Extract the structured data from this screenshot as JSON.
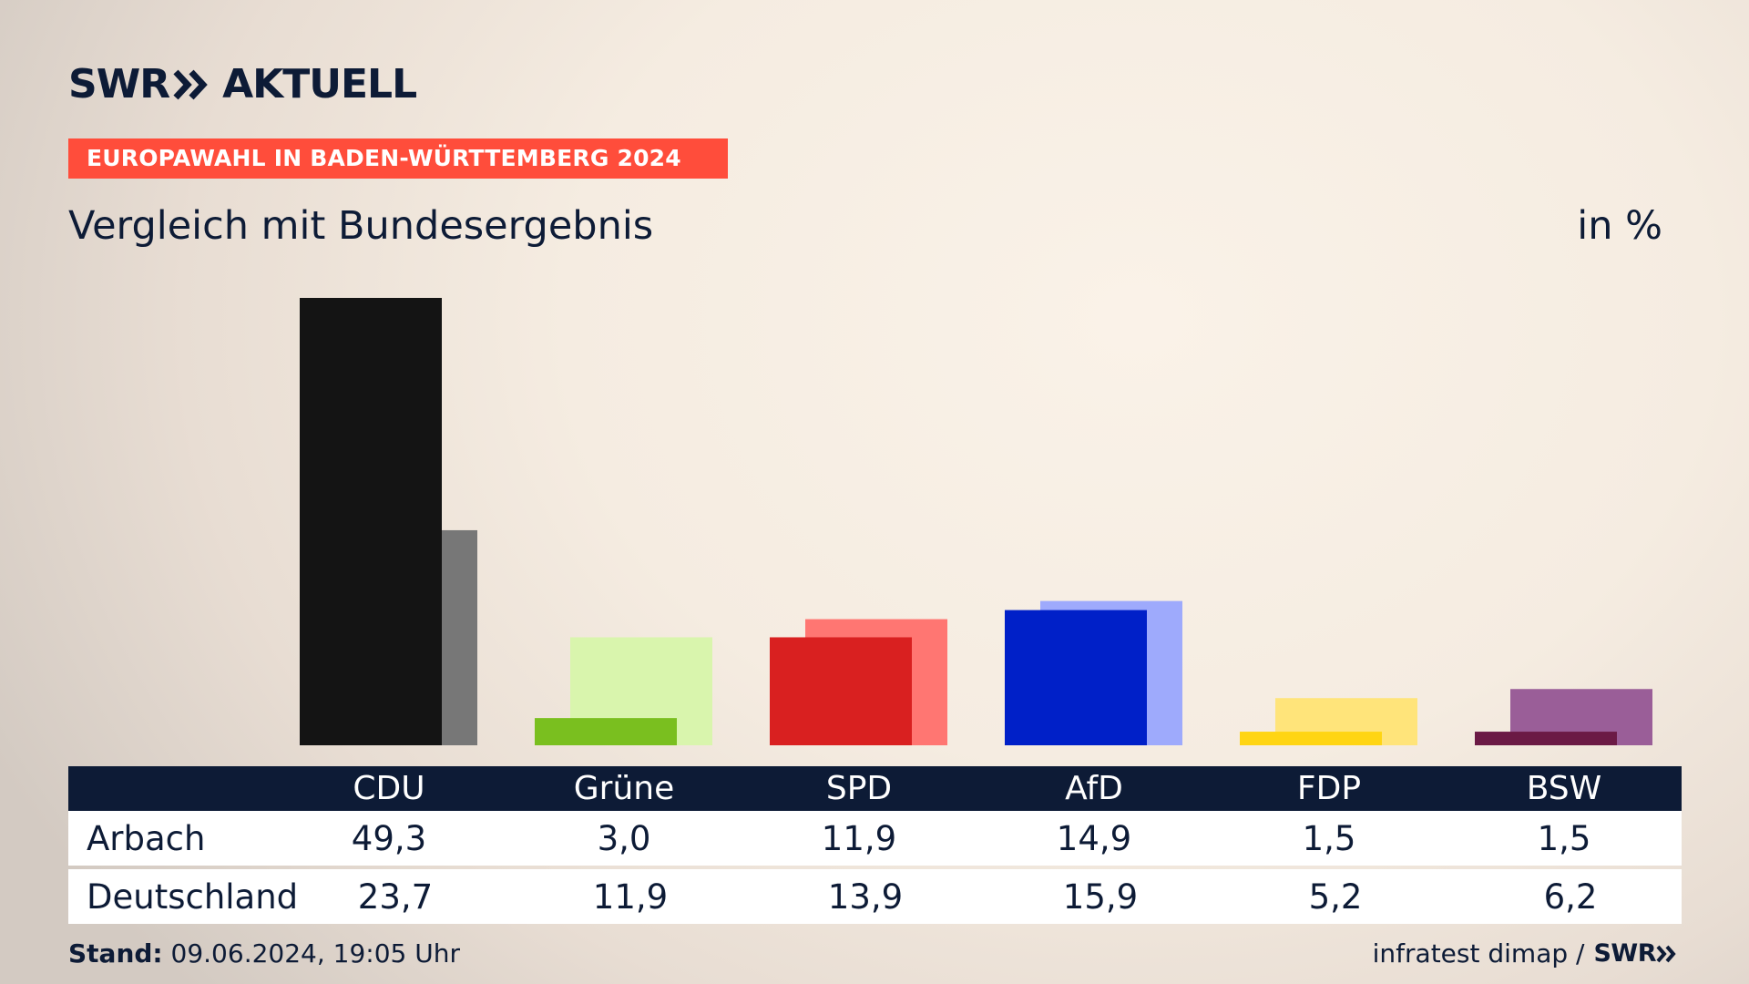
{
  "brand": {
    "swr": "SWR",
    "aktuell": "AKTUELL"
  },
  "kicker": "EUROPAWAHL IN BADEN-WÜRTTEMBERG 2024",
  "title": "Vergleich mit Bundesergebnis",
  "unit": "in %",
  "chart_data": {
    "type": "bar",
    "categories": [
      "CDU",
      "Grüne",
      "SPD",
      "AfD",
      "FDP",
      "BSW"
    ],
    "series": [
      {
        "name": "Arbach",
        "values": [
          49.3,
          3.0,
          11.9,
          14.9,
          1.5,
          1.5
        ]
      },
      {
        "name": "Deutschland",
        "values": [
          23.7,
          11.9,
          13.9,
          15.9,
          5.2,
          6.2
        ]
      }
    ],
    "colors_primary": [
      "#141414",
      "#7abf1f",
      "#d92020",
      "#0020c8",
      "#ffd513",
      "#6b1a45"
    ],
    "colors_secondary": [
      "#777777",
      "#d9f5ad",
      "#ff7672",
      "#9eaafc",
      "#ffe47a",
      "#9a5e98"
    ],
    "title": "Vergleich mit Bundesergebnis",
    "ylabel": "in %"
  },
  "table": {
    "rows": [
      {
        "label": "Arbach",
        "values": [
          "49,3",
          "3,0",
          "11,9",
          "14,9",
          "1,5",
          "1,5"
        ]
      },
      {
        "label": "Deutschland",
        "values": [
          "23,7",
          "11,9",
          "13,9",
          "15,9",
          "5,2",
          "6,2"
        ]
      }
    ]
  },
  "footer": {
    "stand_label": "Stand:",
    "stand_value": "09.06.2024, 19:05 Uhr",
    "source": "infratest dimap /",
    "source_brand": "SWR"
  }
}
